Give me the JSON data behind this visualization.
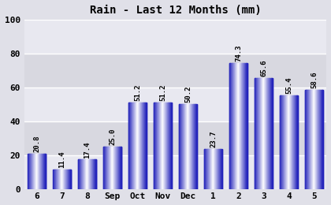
{
  "title": "Rain - Last 12 Months (mm)",
  "categories": [
    "6",
    "7",
    "8",
    "Sep",
    "Oct",
    "Nov",
    "Dec",
    "1",
    "2",
    "3",
    "4",
    "5"
  ],
  "values": [
    20.8,
    11.4,
    17.4,
    25.0,
    51.2,
    51.2,
    50.2,
    23.7,
    74.3,
    65.6,
    55.4,
    58.6
  ],
  "ylim": [
    0,
    100
  ],
  "yticks": [
    0,
    20,
    40,
    60,
    80,
    100
  ],
  "bar_color_edge": "#2222bb",
  "bar_color_mid": "#ffffff",
  "background_color": "#e0e0e8",
  "band_color_dark": "#d8d8e0",
  "band_color_light": "#e8e8f0",
  "grid_color": "#ffffff",
  "title_fontsize": 10,
  "label_fontsize": 6.5,
  "tick_fontsize": 8,
  "bar_width": 0.72,
  "figsize": [
    4.2,
    2.6
  ],
  "dpi": 100
}
